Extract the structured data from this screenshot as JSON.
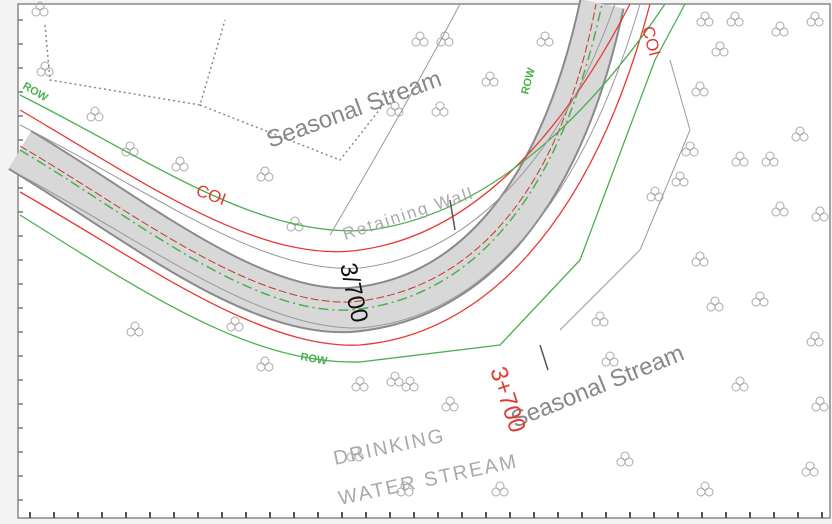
{
  "labels": {
    "stream_top": "Seasonal Stream",
    "stream_bottom": "Seasonal Stream",
    "coi_left": "COI",
    "coi_right": "COI",
    "row_left": "ROW",
    "row_top": "ROW",
    "row_bottom": "ROW",
    "retaining_wall": "Retaining Wall",
    "chainage_black": "3/700",
    "chainage_red": "3+700",
    "drinking": "DRINKING",
    "water_stream": "WATER STREAM"
  }
}
